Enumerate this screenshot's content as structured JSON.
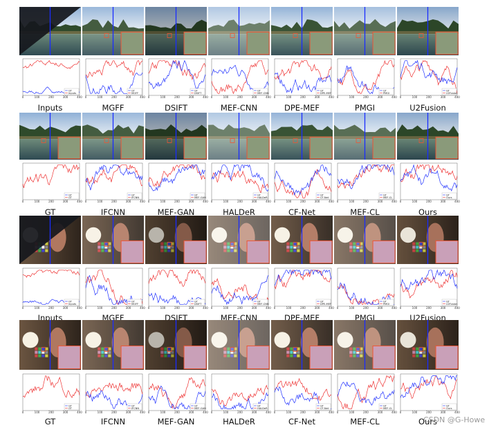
{
  "groups": [
    {
      "labels": [
        "Inputs",
        "MGFF",
        "DSIFT",
        "MEF-CNN",
        "DPE-MEF",
        "PMGI",
        "U2Fusion"
      ]
    },
    {
      "labels": [
        "GT",
        "IFCNN",
        "MEF-GAN",
        "HALDeR",
        "CF-Net",
        "MEF-CL",
        "Ours"
      ]
    },
    {
      "labels": [
        "Inputs",
        "MGFF",
        "DSIFT",
        "MEF-CNN",
        "DPE-MEF",
        "PMGI",
        "U2Fusion"
      ]
    },
    {
      "labels": [
        "GT",
        "IFCNN",
        "MEF-GAN",
        "HALDeR",
        "CF-Net",
        "MEF-CL",
        "Ours"
      ]
    }
  ],
  "x_tick_labels": [
    "0",
    "100",
    "200",
    "300",
    "400"
  ],
  "watermark": "CSDN @G-Howe"
}
